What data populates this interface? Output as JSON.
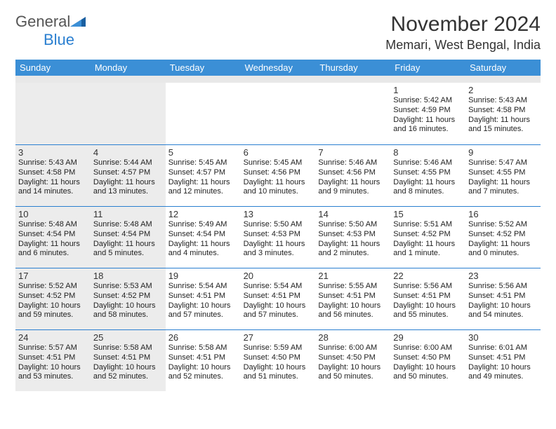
{
  "logo": {
    "word1": "General",
    "word2": "Blue"
  },
  "title": "November 2024",
  "location": "Memari, West Bengal, India",
  "colors": {
    "header_bg": "#3b8fd6",
    "header_text": "#ffffff",
    "border": "#2a7fd0",
    "shaded": "#ececec",
    "text": "#222222",
    "logo_gray": "#555555",
    "logo_blue": "#2a7fd0"
  },
  "weekdays": [
    "Sunday",
    "Monday",
    "Tuesday",
    "Wednesday",
    "Thursday",
    "Friday",
    "Saturday"
  ],
  "shaded_columns": [
    0,
    1
  ],
  "weeks": [
    [
      null,
      null,
      null,
      null,
      null,
      {
        "day": "1",
        "sunrise": "Sunrise: 5:42 AM",
        "sunset": "Sunset: 4:59 PM",
        "daylight1": "Daylight: 11 hours",
        "daylight2": "and 16 minutes."
      },
      {
        "day": "2",
        "sunrise": "Sunrise: 5:43 AM",
        "sunset": "Sunset: 4:58 PM",
        "daylight1": "Daylight: 11 hours",
        "daylight2": "and 15 minutes."
      }
    ],
    [
      {
        "day": "3",
        "sunrise": "Sunrise: 5:43 AM",
        "sunset": "Sunset: 4:58 PM",
        "daylight1": "Daylight: 11 hours",
        "daylight2": "and 14 minutes."
      },
      {
        "day": "4",
        "sunrise": "Sunrise: 5:44 AM",
        "sunset": "Sunset: 4:57 PM",
        "daylight1": "Daylight: 11 hours",
        "daylight2": "and 13 minutes."
      },
      {
        "day": "5",
        "sunrise": "Sunrise: 5:45 AM",
        "sunset": "Sunset: 4:57 PM",
        "daylight1": "Daylight: 11 hours",
        "daylight2": "and 12 minutes."
      },
      {
        "day": "6",
        "sunrise": "Sunrise: 5:45 AM",
        "sunset": "Sunset: 4:56 PM",
        "daylight1": "Daylight: 11 hours",
        "daylight2": "and 10 minutes."
      },
      {
        "day": "7",
        "sunrise": "Sunrise: 5:46 AM",
        "sunset": "Sunset: 4:56 PM",
        "daylight1": "Daylight: 11 hours",
        "daylight2": "and 9 minutes."
      },
      {
        "day": "8",
        "sunrise": "Sunrise: 5:46 AM",
        "sunset": "Sunset: 4:55 PM",
        "daylight1": "Daylight: 11 hours",
        "daylight2": "and 8 minutes."
      },
      {
        "day": "9",
        "sunrise": "Sunrise: 5:47 AM",
        "sunset": "Sunset: 4:55 PM",
        "daylight1": "Daylight: 11 hours",
        "daylight2": "and 7 minutes."
      }
    ],
    [
      {
        "day": "10",
        "sunrise": "Sunrise: 5:48 AM",
        "sunset": "Sunset: 4:54 PM",
        "daylight1": "Daylight: 11 hours",
        "daylight2": "and 6 minutes."
      },
      {
        "day": "11",
        "sunrise": "Sunrise: 5:48 AM",
        "sunset": "Sunset: 4:54 PM",
        "daylight1": "Daylight: 11 hours",
        "daylight2": "and 5 minutes."
      },
      {
        "day": "12",
        "sunrise": "Sunrise: 5:49 AM",
        "sunset": "Sunset: 4:54 PM",
        "daylight1": "Daylight: 11 hours",
        "daylight2": "and 4 minutes."
      },
      {
        "day": "13",
        "sunrise": "Sunrise: 5:50 AM",
        "sunset": "Sunset: 4:53 PM",
        "daylight1": "Daylight: 11 hours",
        "daylight2": "and 3 minutes."
      },
      {
        "day": "14",
        "sunrise": "Sunrise: 5:50 AM",
        "sunset": "Sunset: 4:53 PM",
        "daylight1": "Daylight: 11 hours",
        "daylight2": "and 2 minutes."
      },
      {
        "day": "15",
        "sunrise": "Sunrise: 5:51 AM",
        "sunset": "Sunset: 4:52 PM",
        "daylight1": "Daylight: 11 hours",
        "daylight2": "and 1 minute."
      },
      {
        "day": "16",
        "sunrise": "Sunrise: 5:52 AM",
        "sunset": "Sunset: 4:52 PM",
        "daylight1": "Daylight: 11 hours",
        "daylight2": "and 0 minutes."
      }
    ],
    [
      {
        "day": "17",
        "sunrise": "Sunrise: 5:52 AM",
        "sunset": "Sunset: 4:52 PM",
        "daylight1": "Daylight: 10 hours",
        "daylight2": "and 59 minutes."
      },
      {
        "day": "18",
        "sunrise": "Sunrise: 5:53 AM",
        "sunset": "Sunset: 4:52 PM",
        "daylight1": "Daylight: 10 hours",
        "daylight2": "and 58 minutes."
      },
      {
        "day": "19",
        "sunrise": "Sunrise: 5:54 AM",
        "sunset": "Sunset: 4:51 PM",
        "daylight1": "Daylight: 10 hours",
        "daylight2": "and 57 minutes."
      },
      {
        "day": "20",
        "sunrise": "Sunrise: 5:54 AM",
        "sunset": "Sunset: 4:51 PM",
        "daylight1": "Daylight: 10 hours",
        "daylight2": "and 57 minutes."
      },
      {
        "day": "21",
        "sunrise": "Sunrise: 5:55 AM",
        "sunset": "Sunset: 4:51 PM",
        "daylight1": "Daylight: 10 hours",
        "daylight2": "and 56 minutes."
      },
      {
        "day": "22",
        "sunrise": "Sunrise: 5:56 AM",
        "sunset": "Sunset: 4:51 PM",
        "daylight1": "Daylight: 10 hours",
        "daylight2": "and 55 minutes."
      },
      {
        "day": "23",
        "sunrise": "Sunrise: 5:56 AM",
        "sunset": "Sunset: 4:51 PM",
        "daylight1": "Daylight: 10 hours",
        "daylight2": "and 54 minutes."
      }
    ],
    [
      {
        "day": "24",
        "sunrise": "Sunrise: 5:57 AM",
        "sunset": "Sunset: 4:51 PM",
        "daylight1": "Daylight: 10 hours",
        "daylight2": "and 53 minutes."
      },
      {
        "day": "25",
        "sunrise": "Sunrise: 5:58 AM",
        "sunset": "Sunset: 4:51 PM",
        "daylight1": "Daylight: 10 hours",
        "daylight2": "and 52 minutes."
      },
      {
        "day": "26",
        "sunrise": "Sunrise: 5:58 AM",
        "sunset": "Sunset: 4:51 PM",
        "daylight1": "Daylight: 10 hours",
        "daylight2": "and 52 minutes."
      },
      {
        "day": "27",
        "sunrise": "Sunrise: 5:59 AM",
        "sunset": "Sunset: 4:50 PM",
        "daylight1": "Daylight: 10 hours",
        "daylight2": "and 51 minutes."
      },
      {
        "day": "28",
        "sunrise": "Sunrise: 6:00 AM",
        "sunset": "Sunset: 4:50 PM",
        "daylight1": "Daylight: 10 hours",
        "daylight2": "and 50 minutes."
      },
      {
        "day": "29",
        "sunrise": "Sunrise: 6:00 AM",
        "sunset": "Sunset: 4:50 PM",
        "daylight1": "Daylight: 10 hours",
        "daylight2": "and 50 minutes."
      },
      {
        "day": "30",
        "sunrise": "Sunrise: 6:01 AM",
        "sunset": "Sunset: 4:51 PM",
        "daylight1": "Daylight: 10 hours",
        "daylight2": "and 49 minutes."
      }
    ]
  ]
}
